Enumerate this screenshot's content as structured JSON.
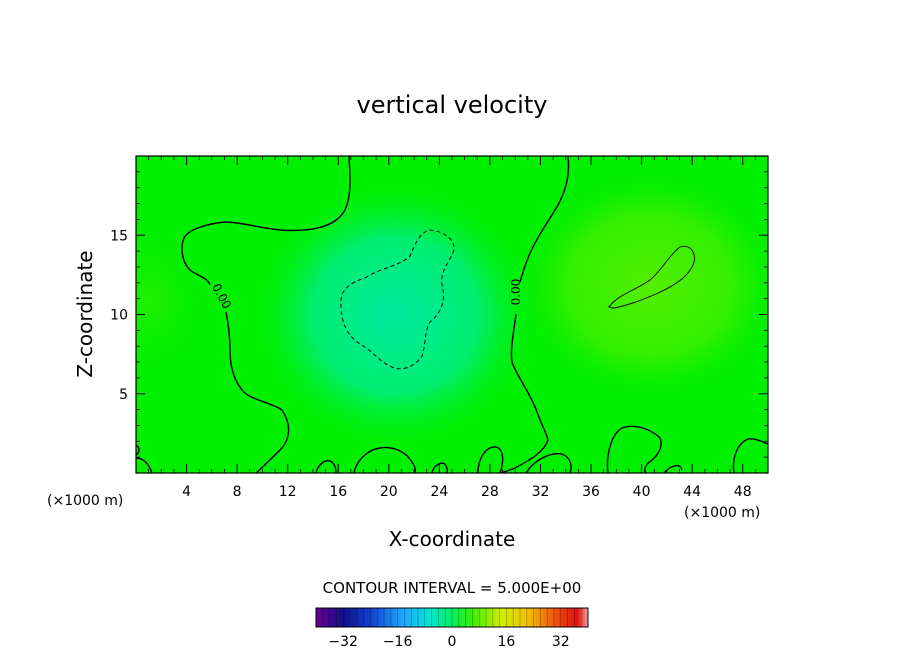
{
  "chart_data": {
    "type": "heatmap",
    "title": "vertical velocity",
    "xlabel": "X-coordinate",
    "ylabel": "Z-coordinate",
    "x_unit_left": "(×1000 m)",
    "x_unit_right": "(×1000 m)",
    "xlim": [
      0,
      50
    ],
    "ylim": [
      0,
      20
    ],
    "x_ticks": [
      "4",
      "8",
      "12",
      "16",
      "20",
      "24",
      "28",
      "32",
      "36",
      "40",
      "44",
      "48"
    ],
    "x_tick_values": [
      4,
      8,
      12,
      16,
      20,
      24,
      28,
      32,
      36,
      40,
      44,
      48
    ],
    "y_ticks": [
      "5",
      "10",
      "15"
    ],
    "y_tick_values": [
      5,
      10,
      15
    ],
    "contour_interval_text": "CONTOUR INTERVAL = 5.000E+00",
    "contour_labels": [
      {
        "text": "0.00",
        "x": 6.5,
        "z": 11.0
      },
      {
        "text": "0.00",
        "x": 30.2,
        "z": 11.4
      }
    ],
    "colorbar": {
      "range": [
        -40,
        40
      ],
      "ticks": [
        "−32",
        "−16",
        "0",
        "16",
        "32"
      ],
      "tick_values": [
        -32,
        -16,
        0,
        16,
        32
      ]
    },
    "field_features": [
      {
        "kind": "downdraft",
        "x": 21,
        "z": 10,
        "peak": -6
      },
      {
        "kind": "updraft",
        "x": 42,
        "z": 12,
        "peak": 6
      }
    ]
  },
  "colors": {
    "field_base": "#00f000",
    "downdraft": "#00e890",
    "updraft": "#44f000",
    "frame": "#000000"
  }
}
